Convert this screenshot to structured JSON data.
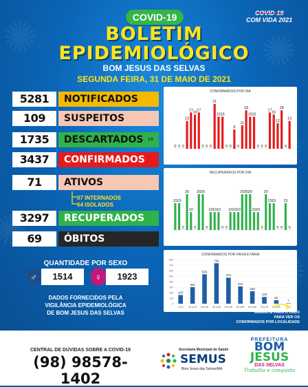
{
  "header": {
    "pill": "COVID-19",
    "title_line1": "BOLETIM",
    "title_line2": "EPIDEMIOLÓGICO",
    "subtitle": "BOM JESUS DAS SELVAS",
    "date": "SEGUNDA FEIRA, 31 DE MAIO DE 2021",
    "corner_struck": "COVID-19",
    "corner_text": "COM VIDA 2021"
  },
  "stats": [
    {
      "value": "5281",
      "label": "NOTIFICADOS",
      "color": "#f5b800",
      "text": "#111"
    },
    {
      "value": "109",
      "label": "SUSPEITOS",
      "color": "#f6c8b4",
      "text": "#111"
    },
    {
      "value": "1735",
      "label": "DESCARTADOS",
      "color": "#2fb24a",
      "text": "#111"
    },
    {
      "value": "3437",
      "label": "CONFIRMADOS",
      "color": "#e51b1b",
      "text": "#fff"
    },
    {
      "value": "71",
      "label": "ATIVOS",
      "color": "#f6c8b4",
      "text": "#111"
    },
    {
      "value": "3297",
      "label": "RECUPERADOS",
      "color": "#2fb24a",
      "text": "#fff"
    },
    {
      "value": "69",
      "label": "ÓBITOS",
      "color": "#262626",
      "text": "#fff"
    }
  ],
  "descartados_note": "10",
  "ativos_detail": {
    "internados": "07 INTERNADOS",
    "isolados": "64 ISOLADOS"
  },
  "sexo": {
    "title": "QUANTIDADE POR SEXO",
    "male": "1514",
    "female": "1923"
  },
  "fornecidos": [
    "DADOS FORNECIDOS PELA",
    "VIGILÂNCIA EPIDEMIOLÓGICA",
    "DE BOM JESUS DAS SELVAS"
  ],
  "arraste": [
    "ARRASTE PARA O LADO",
    "PARA VER OS",
    "CONFIRMADOS POR LOCALIDADE"
  ],
  "footer": {
    "central": "CENTRAL DE DÚVIDAS SOBRE A COVID-19",
    "phone": "(98) 98578-1402",
    "semus_top": "Secretaria Municipal de Saúde",
    "semus": "SEMUS",
    "semus_bottom": "Bom Jesus das Selvas/MA",
    "pref": "PREFEITURA",
    "pref_bom": "BOM",
    "pref_jesus": "JESUS",
    "pref_das": "DAS SELVAS",
    "pref_slogan": "Trabalho e conquista"
  },
  "chart_data": [
    {
      "type": "bar",
      "title": "CONFIRMADOS POR DIA",
      "color": "#e51b1b",
      "values": [
        0,
        0,
        0,
        13,
        17,
        16,
        17,
        0,
        0,
        0,
        21,
        15,
        15,
        0,
        0,
        9,
        0,
        11,
        18,
        15,
        15,
        0,
        0,
        0,
        17,
        16,
        12,
        18,
        0,
        13
      ]
    },
    {
      "type": "bar",
      "title": "RECUPERADOS POR DIA",
      "color": "#2fb24a",
      "values": [
        15,
        15,
        0,
        20,
        10,
        0,
        20,
        20,
        0,
        10,
        10,
        10,
        0,
        0,
        10,
        10,
        10,
        20,
        20,
        20,
        10,
        10,
        0,
        20,
        15,
        15,
        0,
        0,
        15,
        0
      ]
    },
    {
      "type": "bar",
      "title": "CONFIRMADOS POR FAIXA ETÁRIA",
      "color": "#1c5fa8",
      "categories": [
        "0 a 9",
        "10 a 19",
        "20 a 29",
        "30 a 39",
        "40 a 49",
        "50 a 59",
        "60 a 69",
        "70 a 79",
        "80 a 89",
        "> 90"
      ],
      "values": [
        157,
        301,
        533,
        734,
        472,
        313,
        226,
        122,
        64,
        7
      ],
      "ylim": [
        0,
        800
      ],
      "yticks": [
        "800",
        "700",
        "600",
        "500",
        "400",
        "300",
        "200",
        "100",
        "0"
      ]
    }
  ]
}
